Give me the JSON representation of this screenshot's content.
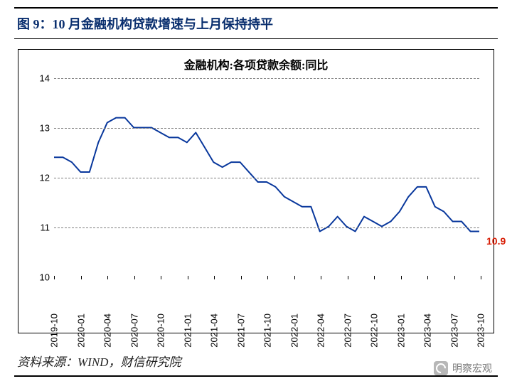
{
  "header": {
    "title": "图 9：10 月金融机构贷款增速与上月保持持平",
    "title_color": "#092e6e",
    "title_fontsize": 18
  },
  "chart": {
    "type": "line",
    "title": "金融机构:各项贷款余额:同比",
    "title_fontsize": 16,
    "background_color": "#ffffff",
    "border_color": "#000000",
    "grid_color": "#7f7f7f",
    "grid_dash": "4 3",
    "line_color": "#08379c",
    "line_width": 2,
    "end_label": {
      "text": "10.9",
      "color": "#d81e06"
    },
    "y": {
      "min": 10,
      "max": 14,
      "ticks": [
        10,
        11,
        12,
        13,
        14
      ],
      "fontsize": 13
    },
    "x": {
      "labels": [
        "2019-10",
        "2020-01",
        "2020-04",
        "2020-07",
        "2020-10",
        "2021-01",
        "2021-04",
        "2021-07",
        "2021-10",
        "2022-01",
        "2022-04",
        "2022-07",
        "2022-10",
        "2023-01",
        "2023-04",
        "2023-07",
        "2023-10"
      ],
      "fontsize": 13
    },
    "series": {
      "x_period": [
        "2019-10",
        "2019-11",
        "2019-12",
        "2020-01",
        "2020-02",
        "2020-03",
        "2020-04",
        "2020-05",
        "2020-06",
        "2020-07",
        "2020-08",
        "2020-09",
        "2020-10",
        "2020-11",
        "2020-12",
        "2021-01",
        "2021-02",
        "2021-03",
        "2021-04",
        "2021-05",
        "2021-06",
        "2021-07",
        "2021-08",
        "2021-09",
        "2021-10",
        "2021-11",
        "2021-12",
        "2022-01",
        "2022-02",
        "2022-03",
        "2022-04",
        "2022-05",
        "2022-06",
        "2022-07",
        "2022-08",
        "2022-09",
        "2022-10",
        "2022-11",
        "2022-12",
        "2023-01",
        "2023-02",
        "2023-03",
        "2023-04",
        "2023-05",
        "2023-06",
        "2023-07",
        "2023-08",
        "2023-09",
        "2023-10"
      ],
      "y": [
        12.4,
        12.4,
        12.3,
        12.1,
        12.1,
        12.7,
        13.1,
        13.2,
        13.2,
        13.0,
        13.0,
        13.0,
        12.9,
        12.8,
        12.8,
        12.7,
        12.9,
        12.6,
        12.3,
        12.2,
        12.3,
        12.3,
        12.1,
        11.9,
        11.9,
        11.8,
        11.6,
        11.5,
        11.4,
        11.4,
        10.9,
        11.0,
        11.2,
        11.0,
        10.9,
        11.2,
        11.1,
        11.0,
        11.1,
        11.3,
        11.6,
        11.8,
        11.8,
        11.4,
        11.3,
        11.1,
        11.1,
        10.9,
        10.9
      ]
    }
  },
  "source": {
    "text": "资料来源：WIND，财信研究院",
    "fontsize": 17
  },
  "watermark": {
    "text": "明察宏观"
  }
}
